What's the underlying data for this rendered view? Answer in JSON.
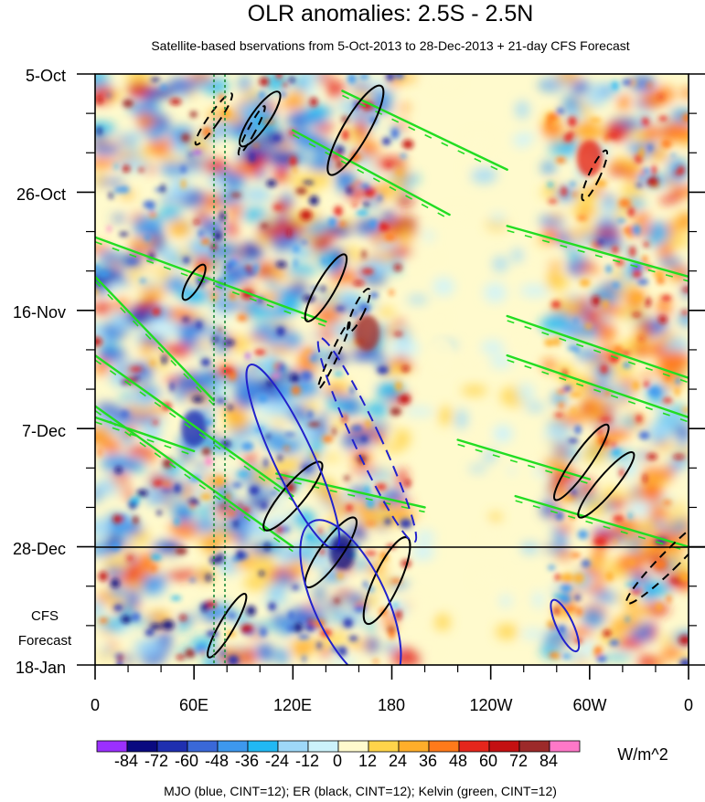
{
  "chart_data": {
    "type": "heatmap",
    "title": "OLR anomalies: 2.5S - 2.5N",
    "subtitle": "Satellite-based bservations from 5-Oct-2013 to 28-Dec-2013 + 21-day CFS Forecast",
    "x_tick_labels": [
      "0",
      "60E",
      "120E",
      "180",
      "120W",
      "60W",
      "0"
    ],
    "x_tick_values_deg_east": [
      0,
      60,
      120,
      180,
      240,
      300,
      360
    ],
    "y_tick_labels": [
      "5-Oct",
      "26-Oct",
      "16-Nov",
      "7-Dec",
      "28-Dec",
      "18-Jan"
    ],
    "y_tick_values_days_from_start": [
      0,
      21,
      42,
      63,
      84,
      105
    ],
    "y_range_days": [
      0,
      105
    ],
    "x_range_deg_east": [
      0,
      360
    ],
    "observation_end_line_day": 84,
    "forecast_label_lines": [
      "CFS",
      "Forecast"
    ],
    "mjo_reference_lines_deg_east": [
      72,
      80
    ],
    "colorbar": {
      "unit_label": "W/m^2",
      "tick_labels": [
        "-84",
        "-72",
        "-60",
        "-48",
        "-36",
        "-24",
        "-12",
        "0",
        "12",
        "24",
        "36",
        "48",
        "60",
        "72",
        "84"
      ],
      "colors": [
        "#9b30ff",
        "#0a0a80",
        "#1f2fb0",
        "#3a68d8",
        "#3d98ee",
        "#21b8f3",
        "#9ed8f8",
        "#ccf2fb",
        "#fffacd",
        "#ffd44a",
        "#ffae2a",
        "#ff7a1a",
        "#e5261c",
        "#c41012",
        "#9c2a2a",
        "#ff78c8"
      ]
    },
    "footer": "MJO (blue, CINT=12); ER (black, CINT=12); Kelvin (green, CINT=12)",
    "anomaly_blobs": [
      {
        "lon": 150,
        "day": 85,
        "value": -80
      },
      {
        "lon": 165,
        "day": 46,
        "value": 72
      },
      {
        "lon": 210,
        "day": 50,
        "value": 0
      },
      {
        "lon": 300,
        "day": 15,
        "value": 48
      },
      {
        "lon": 60,
        "day": 63,
        "value": -70
      }
    ],
    "mjo_contours": [
      {
        "lon_center": 120,
        "day_center": 68,
        "lon_halfwidth": 12,
        "day_halfwidth": 18,
        "dashed": false
      },
      {
        "lon_center": 155,
        "day_center": 94,
        "lon_halfwidth": 22,
        "day_halfwidth": 16,
        "dashed": false
      },
      {
        "lon_center": 285,
        "day_center": 98,
        "lon_halfwidth": 5,
        "day_halfwidth": 5,
        "dashed": false
      },
      {
        "lon_center": 165,
        "day_center": 65,
        "lon_halfwidth": 8,
        "day_halfwidth": 20,
        "dashed": true
      }
    ]
  }
}
